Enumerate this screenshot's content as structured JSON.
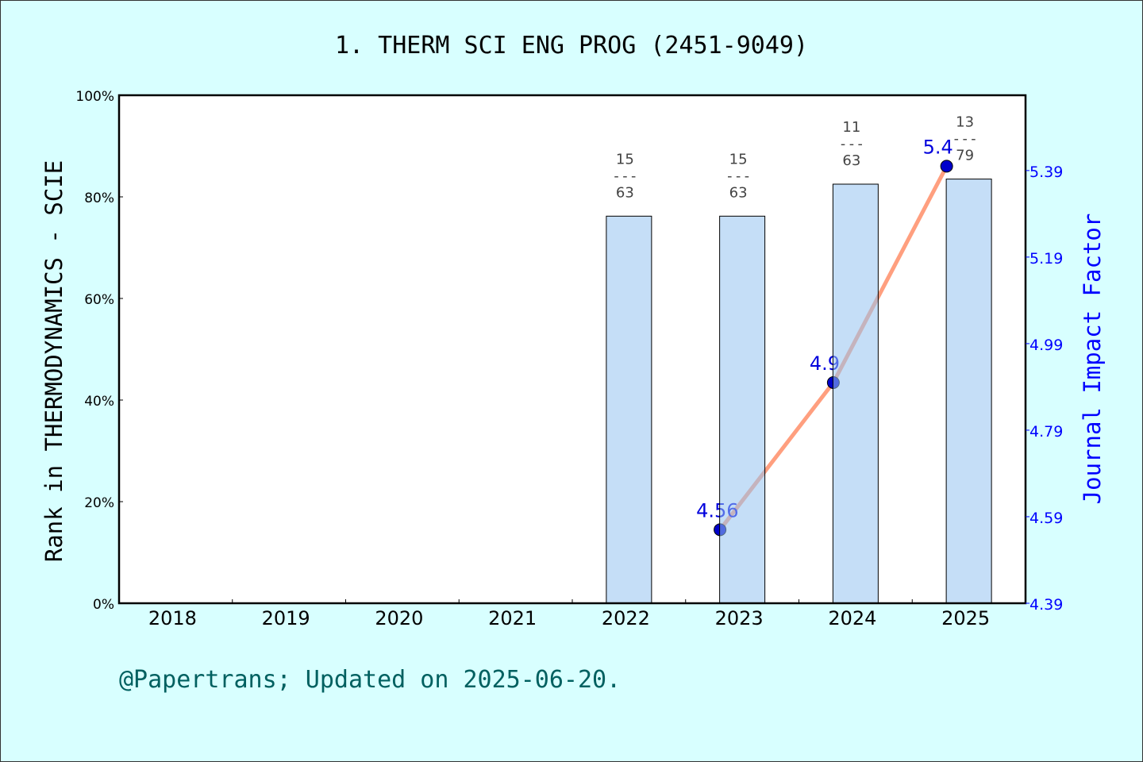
{
  "chart_data": {
    "type": "bar+line",
    "title": "1. THERM SCI ENG PROG (2451-9049)",
    "ylabel": "Rank in THERMODYNAMICS - SCIE",
    "y2label": "Journal Impact Factor",
    "categories": [
      "2018",
      "2019",
      "2020",
      "2021",
      "2022",
      "2023",
      "2024",
      "2025"
    ],
    "ylim": [
      0,
      100
    ],
    "yticks": [
      "0%",
      "20%",
      "40%",
      "60%",
      "80%",
      "100%"
    ],
    "y2lim": [
      4.39,
      5.564
    ],
    "y2ticks": [
      "4.39",
      "4.59",
      "4.79",
      "4.99",
      "5.19",
      "5.39"
    ],
    "bars": {
      "values": [
        null,
        null,
        null,
        null,
        76.2,
        76.2,
        82.5,
        83.5
      ],
      "rank_labels": [
        null,
        null,
        null,
        null,
        {
          "rank": "15",
          "total": "63"
        },
        {
          "rank": "15",
          "total": "63"
        },
        {
          "rank": "11",
          "total": "63"
        },
        {
          "rank": "13",
          "total": "79"
        }
      ],
      "color": "#c5dff8"
    },
    "line": {
      "values": [
        null,
        null,
        null,
        null,
        null,
        4.56,
        4.9,
        5.4
      ],
      "labels": [
        null,
        null,
        null,
        null,
        null,
        "4.56",
        "4.9",
        "5.4"
      ],
      "color": "#ff9f7f",
      "marker_color": "#0000cc"
    },
    "grid": false
  },
  "footer": "@Papertrans; Updated on 2025-06-20."
}
